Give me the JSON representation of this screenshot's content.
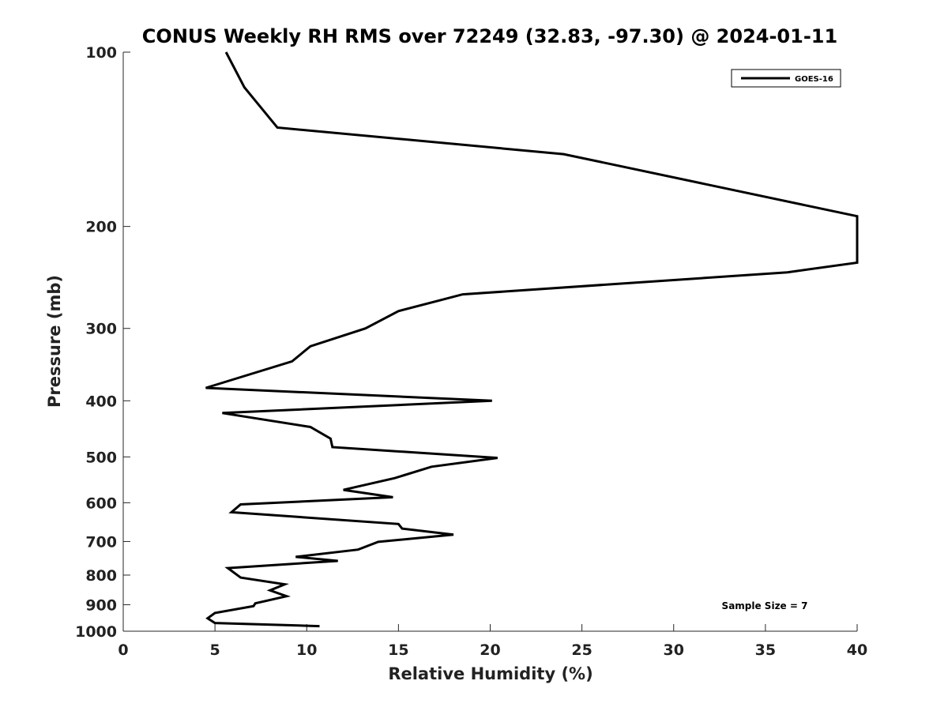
{
  "chart_data": {
    "type": "line",
    "title": "CONUS Weekly RH RMS over 72249 (32.83, -97.30) @ 2024-01-11",
    "xlabel": "Relative Humidity (%)",
    "ylabel": "Pressure (mb)",
    "xlim": [
      0,
      40
    ],
    "ylim": [
      100,
      1000
    ],
    "y_scale": "log",
    "y_reversed": true,
    "xticks": [
      0,
      5,
      10,
      15,
      20,
      25,
      30,
      35,
      40
    ],
    "yticks": [
      100,
      200,
      300,
      400,
      500,
      600,
      700,
      800,
      900,
      1000
    ],
    "grid": false,
    "legend_position": "top-right",
    "annotation": "Sample Size = 7",
    "series": [
      {
        "name": "GOES-16",
        "color": "#000000",
        "points": [
          [
            5.6,
            100
          ],
          [
            6.6,
            115
          ],
          [
            8.4,
            135
          ],
          [
            24.0,
            150
          ],
          [
            40.0,
            192
          ],
          [
            40.0,
            231
          ],
          [
            36.2,
            240
          ],
          [
            18.5,
            262
          ],
          [
            15.0,
            280
          ],
          [
            13.2,
            300
          ],
          [
            10.2,
            322
          ],
          [
            9.2,
            342
          ],
          [
            4.5,
            380
          ],
          [
            20.1,
            400
          ],
          [
            5.4,
            420
          ],
          [
            10.2,
            444
          ],
          [
            11.3,
            465
          ],
          [
            11.4,
            481
          ],
          [
            20.4,
            502
          ],
          [
            16.8,
            520
          ],
          [
            14.8,
            544
          ],
          [
            12.0,
            570
          ],
          [
            14.7,
            587
          ],
          [
            6.4,
            604
          ],
          [
            5.9,
            623
          ],
          [
            15.0,
            653
          ],
          [
            15.2,
            665
          ],
          [
            18.0,
            681
          ],
          [
            13.9,
            701
          ],
          [
            12.8,
            723
          ],
          [
            9.4,
            744
          ],
          [
            11.7,
            756
          ],
          [
            5.7,
            778
          ],
          [
            6.4,
            808
          ],
          [
            8.8,
            830
          ],
          [
            8.0,
            850
          ],
          [
            8.9,
            870
          ],
          [
            7.2,
            895
          ],
          [
            7.1,
            905
          ],
          [
            5.0,
            930
          ],
          [
            4.6,
            950
          ],
          [
            5.0,
            968
          ],
          [
            10.7,
            980
          ]
        ]
      }
    ]
  }
}
